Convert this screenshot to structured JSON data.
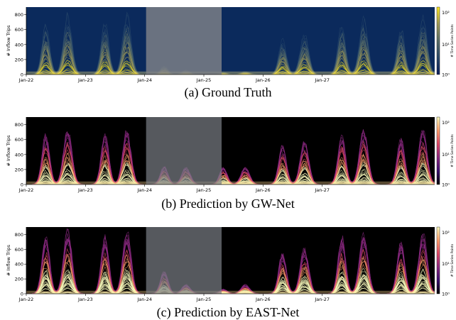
{
  "chart_data": [
    {
      "type": "line",
      "panel": "ground-truth",
      "caption": "(a) Ground Truth",
      "ylabel": "# Inflow Trips",
      "colorbar_label": "# Time Series Points",
      "colorbar_ticks": [
        "10⁰",
        "10¹",
        "10²"
      ],
      "colorbar_colors": [
        "#0a1f5c",
        "#2c4a6b",
        "#5b6f6a",
        "#9f9a5a",
        "#fde725"
      ],
      "background": "#0b2a5c",
      "scale": "log",
      "x_ticks": [
        "Jan-22",
        "Jan-23",
        "Jan-24",
        "Jan-25",
        "Jan-26",
        "Jan-27"
      ],
      "y_ticks": [
        0,
        200,
        400,
        600,
        800
      ],
      "ylim": [
        0,
        900
      ],
      "masked_days": [
        "Jan-24",
        "Jan-25"
      ],
      "peak_profile": [
        {
          "day": "Jan-22",
          "am": 700,
          "pm": 830
        },
        {
          "day": "Jan-23",
          "am": 720,
          "pm": 820
        },
        {
          "day": "Jan-24",
          "am": 120,
          "pm": 60
        },
        {
          "day": "Jan-25",
          "am": 30,
          "pm": 40
        },
        {
          "day": "Jan-26",
          "am": 480,
          "pm": 560
        },
        {
          "day": "Jan-27",
          "am": 700,
          "pm": 780
        },
        {
          "day": "Jan-28",
          "am": 640,
          "pm": 800
        }
      ]
    },
    {
      "type": "line",
      "panel": "gw-net",
      "caption": "(b) Prediction by GW-Net",
      "ylabel": "# Inflow Trips",
      "colorbar_label": "# Time Series Points",
      "colorbar_ticks": [
        "10⁰",
        "10¹",
        "10²"
      ],
      "colorbar_colors": [
        "#000004",
        "#3b0f70",
        "#8c2981",
        "#de4968",
        "#fe9f6d",
        "#fcfdbf"
      ],
      "background": "#000000",
      "scale": "log",
      "x_ticks": [
        "Jan-22",
        "Jan-23",
        "Jan-24",
        "Jan-25",
        "Jan-26",
        "Jan-27"
      ],
      "y_ticks": [
        0,
        200,
        400,
        600,
        800
      ],
      "ylim": [
        0,
        900
      ],
      "masked_days": [
        "Jan-24",
        "Jan-25"
      ],
      "peak_profile": [
        {
          "day": "Jan-22",
          "am": 640,
          "pm": 720
        },
        {
          "day": "Jan-23",
          "am": 650,
          "pm": 700
        },
        {
          "day": "Jan-24",
          "am": 230,
          "pm": 220
        },
        {
          "day": "Jan-25",
          "am": 220,
          "pm": 220
        },
        {
          "day": "Jan-26",
          "am": 500,
          "pm": 560
        },
        {
          "day": "Jan-27",
          "am": 640,
          "pm": 720
        },
        {
          "day": "Jan-28",
          "am": 600,
          "pm": 700
        }
      ]
    },
    {
      "type": "line",
      "panel": "east-net",
      "caption": "(c) Prediction by EAST-Net",
      "ylabel": "# Inflow Trips",
      "colorbar_label": "# Time Series Points",
      "colorbar_ticks": [
        "10⁰",
        "10¹",
        "10²"
      ],
      "colorbar_colors": [
        "#000004",
        "#3b0f70",
        "#8c2981",
        "#de4968",
        "#fe9f6d",
        "#fcfdbf"
      ],
      "background": "#000000",
      "scale": "log",
      "x_ticks": [
        "Jan-22",
        "Jan-23",
        "Jan-24",
        "Jan-25",
        "Jan-26",
        "Jan-27"
      ],
      "y_ticks": [
        0,
        200,
        400,
        600,
        800
      ],
      "ylim": [
        0,
        900
      ],
      "masked_days": [
        "Jan-24",
        "Jan-25"
      ],
      "peak_profile": [
        {
          "day": "Jan-22",
          "am": 780,
          "pm": 850
        },
        {
          "day": "Jan-23",
          "am": 760,
          "pm": 830
        },
        {
          "day": "Jan-24",
          "am": 300,
          "pm": 120
        },
        {
          "day": "Jan-25",
          "am": 60,
          "pm": 120
        },
        {
          "day": "Jan-26",
          "am": 560,
          "pm": 620
        },
        {
          "day": "Jan-27",
          "am": 760,
          "pm": 820
        },
        {
          "day": "Jan-28",
          "am": 700,
          "pm": 820
        }
      ]
    }
  ]
}
